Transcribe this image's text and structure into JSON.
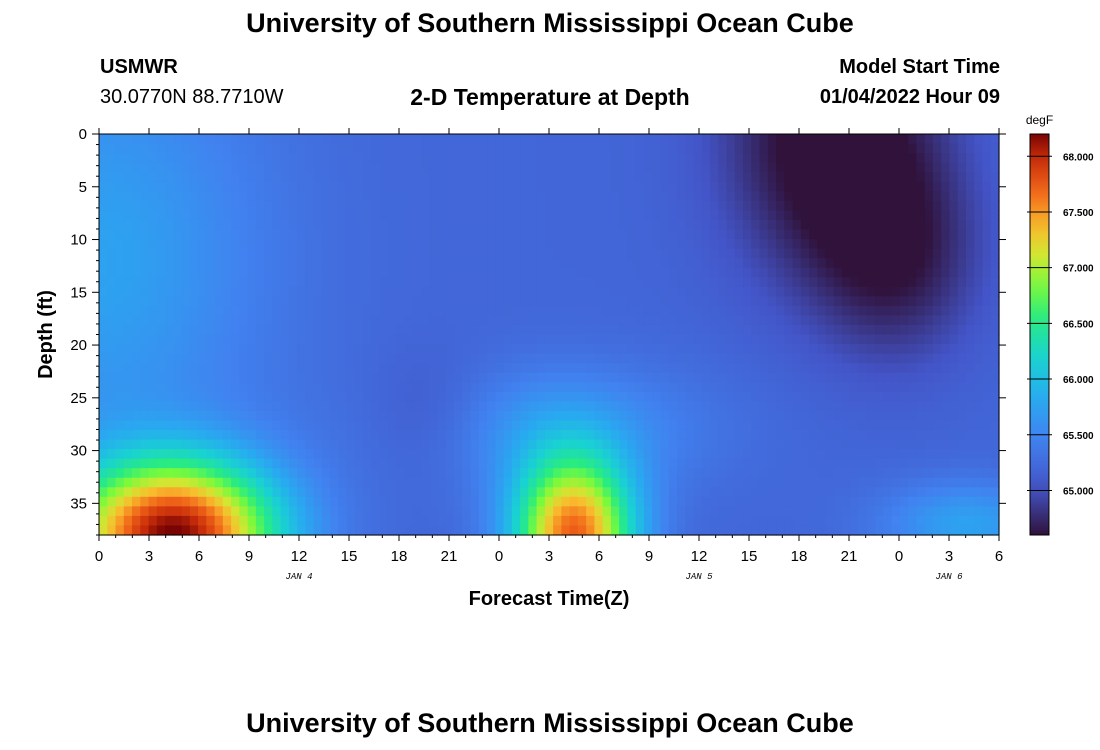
{
  "header": {
    "title": "University of Southern Mississippi Ocean Cube",
    "station": "USMWR",
    "coords": "30.0770N  88.7710W",
    "plot_title": "2-D Temperature at Depth",
    "model_label": "Model Start Time",
    "model_time": "01/04/2022 Hour 09",
    "footer_title": "University of Southern Mississippi Ocean Cube"
  },
  "chart_data": {
    "type": "heatmap",
    "title": "2-D Temperature at Depth",
    "xlabel": "Forecast Time(Z)",
    "ylabel": "Depth (ft)",
    "x_ticks": [
      "0",
      "3",
      "6",
      "9",
      "12",
      "15",
      "18",
      "21",
      "0",
      "3",
      "6",
      "9",
      "12",
      "15",
      "18",
      "21",
      "0",
      "3",
      "6"
    ],
    "x_range_hours": [
      0,
      54
    ],
    "date_labels": [
      {
        "label": "JAN 4",
        "hour": 12
      },
      {
        "label": "JAN 5",
        "hour": 36
      },
      {
        "label": "JAN 6",
        "hour": 51
      }
    ],
    "y_ticks": [
      0,
      5,
      10,
      15,
      20,
      25,
      30,
      35
    ],
    "ylim": [
      0,
      38
    ],
    "colorbar": {
      "unit": "degF",
      "ticks": [
        "68.000",
        "67.500",
        "67.000",
        "66.500",
        "66.000",
        "65.500",
        "65.000"
      ],
      "min": 64.6,
      "max": 68.2
    },
    "features": [
      {
        "desc": "warm bottom water",
        "hours": [
          0,
          12
        ],
        "depth_ft": [
          29,
          38
        ],
        "max_degF": 68.1
      },
      {
        "desc": "warm bottom water",
        "hours": [
          24,
          33
        ],
        "depth_ft": [
          30,
          38
        ],
        "max_degF": 67.7
      },
      {
        "desc": "cold surface water",
        "hours": [
          35,
          48
        ],
        "depth_ft": [
          0,
          24
        ],
        "min_degF": 64.6
      }
    ],
    "background_degF": 65.2,
    "nearsurface_degF": 65.8
  }
}
